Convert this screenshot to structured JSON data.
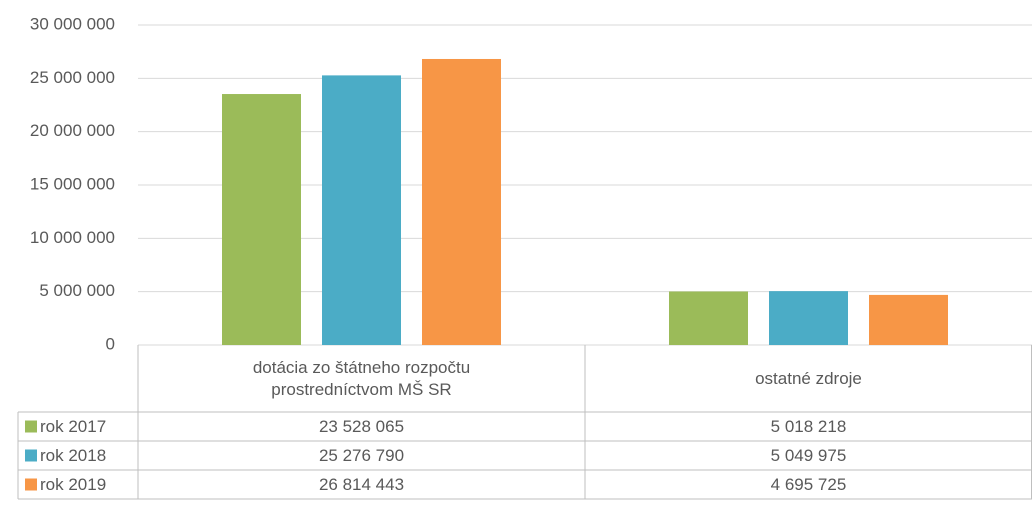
{
  "chart_data": {
    "type": "bar",
    "categories": [
      "dotácia zo štátneho rozpočtu prostredníctvom MŠ SR",
      "ostatné zdroje"
    ],
    "series": [
      {
        "name": "rok 2017",
        "color": "#9bbb59",
        "values": [
          23528065,
          5018218
        ],
        "value_labels": [
          "23 528 065",
          "5 018 218"
        ]
      },
      {
        "name": "rok 2018",
        "color": "#4bacc6",
        "values": [
          25276790,
          5049975
        ],
        "value_labels": [
          "25 276 790",
          "5 049 975"
        ]
      },
      {
        "name": "rok 2019",
        "color": "#f79646",
        "values": [
          26814443,
          4695725
        ],
        "value_labels": [
          "26 814 443",
          "4 695 725"
        ]
      }
    ],
    "ylim": [
      0,
      30000000
    ],
    "yticks": [
      0,
      {
        "value": 5000000,
        "label": "5 000 000"
      },
      {
        "value": 10000000,
        "label": "10 000 000"
      },
      {
        "value": 15000000,
        "label": "15 000 000"
      },
      {
        "value": 20000000,
        "label": "20 000 000"
      },
      {
        "value": 25000000,
        "label": "25 000 000"
      },
      {
        "value": 30000000,
        "label": "30 000 000"
      }
    ],
    "grid": true
  }
}
